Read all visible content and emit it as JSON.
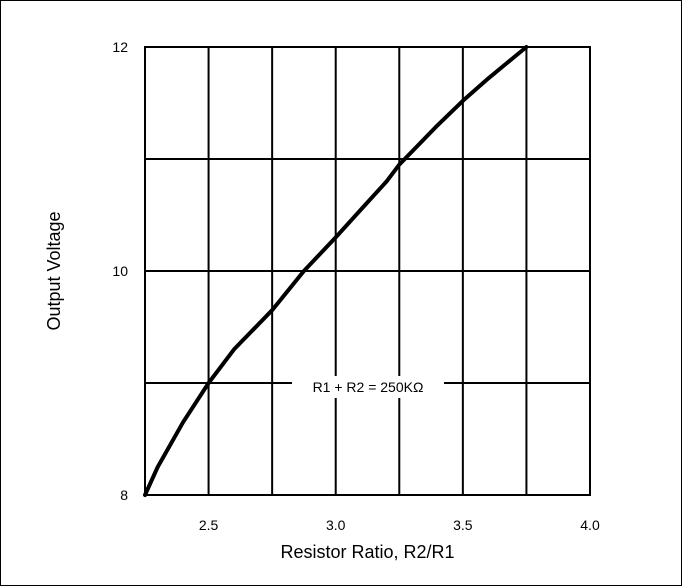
{
  "chart_data": {
    "type": "line",
    "title": "",
    "xlabel": "Resistor Ratio, R2/R1",
    "ylabel": "Output Voltage",
    "xlim": [
      2.25,
      4.0
    ],
    "ylim": [
      8,
      12
    ],
    "grid": true,
    "x_gridlines": [
      2.25,
      2.5,
      2.75,
      3.0,
      3.25,
      3.5,
      3.75,
      4.0
    ],
    "y_gridlines": [
      8,
      9,
      10,
      11,
      12
    ],
    "x_tick_labels": [
      {
        "value": 2.5,
        "label": "2.5"
      },
      {
        "value": 3.0,
        "label": "3.0"
      },
      {
        "value": 3.5,
        "label": "3.5"
      },
      {
        "value": 4.0,
        "label": "4.0"
      }
    ],
    "y_tick_labels": [
      {
        "value": 8,
        "label": "8"
      },
      {
        "value": 10,
        "label": "10"
      },
      {
        "value": 12,
        "label": "12"
      }
    ],
    "annotation": "R1 + R2 = 250KΩ",
    "series": [
      {
        "x": [
          2.25,
          2.3,
          2.4,
          2.5,
          2.6,
          2.75,
          2.875,
          3.0,
          3.1,
          3.2,
          3.25,
          3.4,
          3.5,
          3.6,
          3.75
        ],
        "y": [
          8.0,
          8.25,
          8.65,
          9.0,
          9.3,
          9.65,
          10.0,
          10.3,
          10.55,
          10.8,
          10.95,
          11.3,
          11.52,
          11.72,
          12.0
        ]
      }
    ]
  }
}
